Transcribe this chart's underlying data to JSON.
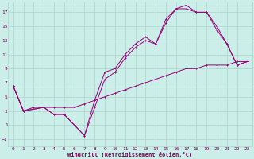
{
  "xlabel": "Windchill (Refroidissement éolien,°C)",
  "bg_color": "#cceee8",
  "grid_color": "#aad4ce",
  "line_color": "#990077",
  "tick_color": "#770055",
  "xlim": [
    -0.5,
    23.5
  ],
  "ylim": [
    -2,
    18.5
  ],
  "xticks": [
    0,
    1,
    2,
    3,
    4,
    5,
    6,
    7,
    8,
    9,
    10,
    11,
    12,
    13,
    14,
    15,
    16,
    17,
    18,
    19,
    20,
    21,
    22,
    23
  ],
  "yticks": [
    -1,
    1,
    3,
    5,
    7,
    9,
    11,
    13,
    15,
    17
  ],
  "line1_x": [
    0,
    1,
    3,
    4,
    5,
    6,
    7,
    8,
    9,
    10,
    11,
    12,
    13,
    14,
    15,
    16,
    17,
    18,
    19,
    20,
    21,
    22,
    23
  ],
  "line1_y": [
    6.5,
    3.0,
    3.5,
    2.5,
    2.5,
    1.0,
    -0.5,
    4.5,
    8.5,
    9.0,
    11.0,
    12.5,
    13.5,
    12.5,
    16.0,
    17.5,
    17.5,
    17.0,
    17.0,
    14.5,
    12.5,
    9.5,
    10.0
  ],
  "line2_x": [
    0,
    1,
    3,
    4,
    5,
    6,
    7,
    8,
    9,
    10,
    11,
    12,
    13,
    14,
    15,
    16,
    17,
    18,
    19,
    20,
    21,
    22,
    23
  ],
  "line2_y": [
    6.5,
    3.0,
    3.5,
    2.5,
    2.5,
    1.0,
    -0.5,
    3.5,
    7.5,
    8.5,
    10.5,
    12.0,
    13.0,
    12.5,
    15.5,
    17.5,
    18.0,
    17.0,
    17.0,
    15.0,
    12.5,
    9.5,
    10.0
  ],
  "line3_x": [
    0,
    1,
    2,
    3,
    4,
    5,
    6,
    7,
    8,
    9,
    10,
    11,
    12,
    13,
    14,
    15,
    16,
    17,
    18,
    19,
    20,
    21,
    22,
    23
  ],
  "line3_y": [
    6.5,
    3.0,
    3.5,
    3.5,
    3.5,
    3.5,
    3.5,
    4.0,
    4.5,
    5.0,
    5.5,
    6.0,
    6.5,
    7.0,
    7.5,
    8.0,
    8.5,
    9.0,
    9.0,
    9.5,
    9.5,
    9.5,
    10.0,
    10.0
  ]
}
